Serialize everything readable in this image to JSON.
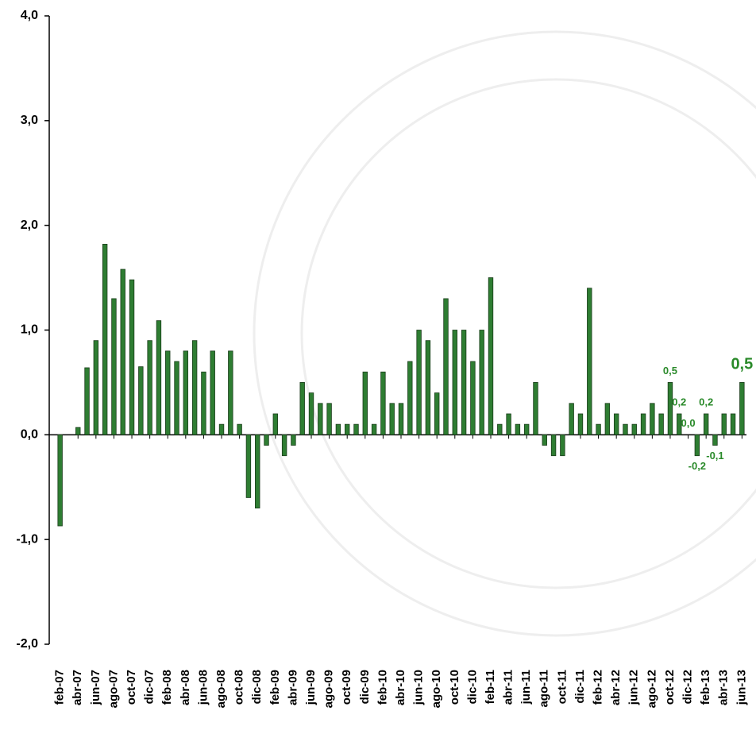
{
  "chart_data": {
    "type": "bar",
    "categories": [
      "feb-07",
      null,
      "abr-07",
      null,
      "jun-07",
      null,
      "ago-07",
      null,
      "oct-07",
      null,
      "dic-07",
      null,
      "feb-08",
      null,
      "abr-08",
      null,
      "jun-08",
      null,
      "ago-08",
      null,
      "oct-08",
      null,
      "dic-08",
      null,
      "feb-09",
      null,
      "abr-09",
      null,
      "jun-09",
      null,
      "ago-09",
      null,
      "oct-09",
      null,
      "dic-09",
      null,
      "feb-10",
      null,
      "abr-10",
      null,
      "jun-10",
      null,
      "ago-10",
      null,
      "oct-10",
      null,
      "dic-10",
      null,
      "feb-11",
      null,
      "abr-11",
      null,
      "jun-11",
      null,
      "ago-11",
      null,
      "oct-11",
      null,
      "dic-11",
      null,
      "feb-12",
      null,
      "abr-12",
      null,
      "jun-12",
      null,
      "ago-12",
      null,
      "oct-12",
      null,
      "dic-12",
      null,
      "feb-13",
      null,
      "abr-13",
      null,
      "jun-13"
    ],
    "values": [
      -0.87,
      0,
      0.07,
      0.64,
      0.9,
      1.82,
      1.3,
      1.58,
      1.48,
      0.65,
      0.9,
      1.09,
      0.8,
      0.7,
      0.8,
      0.9,
      0.6,
      0.8,
      0.1,
      0.8,
      0.1,
      -0.6,
      -0.7,
      -0.1,
      0.2,
      -0.2,
      -0.1,
      0.5,
      0.4,
      0.3,
      0.3,
      0.1,
      0.1,
      0.1,
      0.6,
      0.1,
      0.6,
      0.3,
      0.3,
      0.7,
      1.0,
      0.9,
      0.4,
      1.3,
      1.0,
      1.0,
      0.7,
      1.0,
      1.5,
      0.1,
      0.2,
      0.1,
      0.1,
      0.5,
      -0.1,
      -0.2,
      -0.2,
      0.3,
      0.2,
      1.4,
      0.1,
      0.3,
      0.2,
      0.1,
      0.1,
      0.2,
      0.3,
      0.2,
      0.5,
      0.2,
      0.0,
      -0.2,
      0.2,
      -0.1,
      0.2,
      0.2,
      0.5
    ],
    "value_labels": [
      null,
      null,
      null,
      null,
      null,
      null,
      null,
      null,
      null,
      null,
      null,
      null,
      null,
      null,
      null,
      null,
      null,
      null,
      null,
      null,
      null,
      null,
      null,
      null,
      null,
      null,
      null,
      null,
      null,
      null,
      null,
      null,
      null,
      null,
      null,
      null,
      null,
      null,
      null,
      null,
      null,
      null,
      null,
      null,
      null,
      null,
      null,
      null,
      null,
      null,
      null,
      null,
      null,
      null,
      null,
      null,
      null,
      null,
      null,
      null,
      null,
      null,
      null,
      null,
      null,
      null,
      null,
      null,
      "0,5",
      "0,2",
      "0,0",
      "-0,2",
      "0,2",
      "-0,1",
      null,
      null,
      "0,5"
    ],
    "color": "#2e7d32",
    "label_color": "#2a8a2a",
    "ylim": [
      -2,
      4
    ],
    "yticks": [
      {
        "value": -2,
        "label": "-2,0"
      },
      {
        "value": -1,
        "label": "-1,0"
      },
      {
        "value": 0,
        "label": "0,0"
      },
      {
        "value": 1,
        "label": "1,0"
      },
      {
        "value": 2,
        "label": "2,0"
      },
      {
        "value": 3,
        "label": "3,0"
      },
      {
        "value": 4,
        "label": "4,0"
      }
    ],
    "grid": false
  }
}
